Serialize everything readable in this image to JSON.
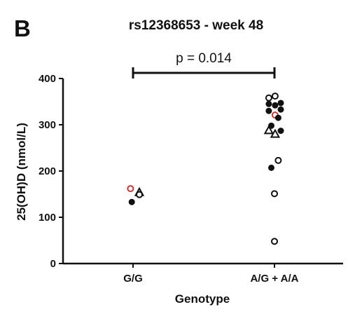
{
  "panel_letter": "B",
  "chart_data": {
    "type": "scatter",
    "title": "rs12368653 - week 48",
    "xlabel": "Genotype",
    "ylabel": "25(OH)D (nmol/L)",
    "categories": [
      "G/G",
      "A/G + A/A"
    ],
    "ylim": [
      0,
      400
    ],
    "yticks": [
      0,
      100,
      200,
      300,
      400
    ],
    "grid": false,
    "annotation": {
      "text": "p = 0.014",
      "from": "G/G",
      "to": "A/G + A/A"
    },
    "colors": {
      "axis": "#111111",
      "marker": "#111111",
      "highlight": "#cc3333"
    },
    "points": [
      {
        "category": "G/G",
        "jitter": -0.4,
        "y": 162,
        "marker": "open-circle",
        "color": "#cc3333"
      },
      {
        "category": "G/G",
        "jitter": 1.0,
        "y": 154,
        "marker": "open-triangle",
        "color": "#111111"
      },
      {
        "category": "G/G",
        "jitter": 1.0,
        "y": 149,
        "marker": "open-circle",
        "color": "#111111"
      },
      {
        "category": "G/G",
        "jitter": -0.2,
        "y": 133,
        "marker": "filled-circle",
        "color": "#111111"
      },
      {
        "category": "A/G + A/A",
        "jitter": -0.9,
        "y": 358,
        "marker": "open-circle",
        "color": "#111111"
      },
      {
        "category": "A/G + A/A",
        "jitter": 0.1,
        "y": 362,
        "marker": "open-circle",
        "color": "#111111"
      },
      {
        "category": "A/G + A/A",
        "jitter": -0.9,
        "y": 345,
        "marker": "filled-circle",
        "color": "#111111"
      },
      {
        "category": "A/G + A/A",
        "jitter": 0.1,
        "y": 342,
        "marker": "filled-circle",
        "color": "#111111"
      },
      {
        "category": "A/G + A/A",
        "jitter": 1.0,
        "y": 347,
        "marker": "filled-circle",
        "color": "#111111"
      },
      {
        "category": "A/G + A/A",
        "jitter": -0.9,
        "y": 330,
        "marker": "filled-circle",
        "color": "#111111"
      },
      {
        "category": "A/G + A/A",
        "jitter": 1.0,
        "y": 333,
        "marker": "filled-circle",
        "color": "#111111"
      },
      {
        "category": "A/G + A/A",
        "jitter": 0.1,
        "y": 321,
        "marker": "open-circle",
        "color": "#cc3333"
      },
      {
        "category": "A/G + A/A",
        "jitter": 0.6,
        "y": 315,
        "marker": "filled-circle",
        "color": "#111111"
      },
      {
        "category": "A/G + A/A",
        "jitter": -0.5,
        "y": 298,
        "marker": "filled-circle",
        "color": "#111111"
      },
      {
        "category": "A/G + A/A",
        "jitter": -0.9,
        "y": 288,
        "marker": "open-triangle",
        "color": "#111111"
      },
      {
        "category": "A/G + A/A",
        "jitter": 1.0,
        "y": 287,
        "marker": "filled-circle",
        "color": "#111111"
      },
      {
        "category": "A/G + A/A",
        "jitter": 0.1,
        "y": 280,
        "marker": "open-triangle",
        "color": "#111111"
      },
      {
        "category": "A/G + A/A",
        "jitter": 0.6,
        "y": 223,
        "marker": "open-circle",
        "color": "#111111"
      },
      {
        "category": "A/G + A/A",
        "jitter": -0.5,
        "y": 207,
        "marker": "filled-circle",
        "color": "#111111"
      },
      {
        "category": "A/G + A/A",
        "jitter": 0.0,
        "y": 151,
        "marker": "open-circle",
        "color": "#111111"
      },
      {
        "category": "A/G + A/A",
        "jitter": 0.0,
        "y": 48,
        "marker": "open-circle",
        "color": "#111111"
      }
    ]
  }
}
